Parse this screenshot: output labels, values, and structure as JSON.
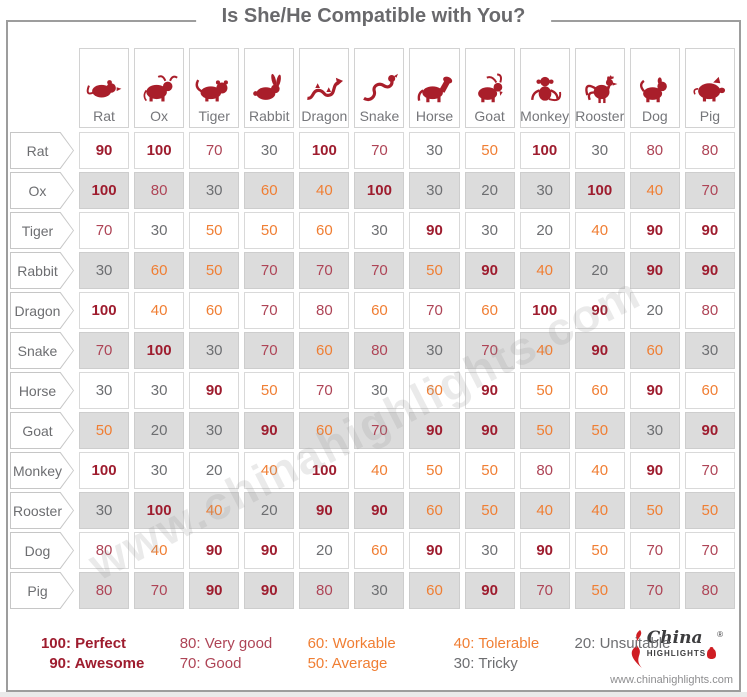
{
  "title": "Is She/He Compatible with You?",
  "watermark": "www.chinahighlights.com",
  "animals": [
    {
      "label": "Rat",
      "icon": "rat-icon"
    },
    {
      "label": "Ox",
      "icon": "ox-icon"
    },
    {
      "label": "Tiger",
      "icon": "tiger-icon"
    },
    {
      "label": "Rabbit",
      "icon": "rabbit-icon"
    },
    {
      "label": "Dragon",
      "icon": "dragon-icon"
    },
    {
      "label": "Snake",
      "icon": "snake-icon"
    },
    {
      "label": "Horse",
      "icon": "horse-icon"
    },
    {
      "label": "Goat",
      "icon": "goat-icon"
    },
    {
      "label": "Monkey",
      "icon": "monkey-icon"
    },
    {
      "label": "Rooster",
      "icon": "rooster-icon"
    },
    {
      "label": "Dog",
      "icon": "dog-icon"
    },
    {
      "label": "Pig",
      "icon": "pig-icon"
    }
  ],
  "chart_data": {
    "type": "heatmap",
    "title": "Is She/He Compatible with You?",
    "categories": [
      "Rat",
      "Ox",
      "Tiger",
      "Rabbit",
      "Dragon",
      "Snake",
      "Horse",
      "Goat",
      "Monkey",
      "Rooster",
      "Dog",
      "Pig"
    ],
    "rows": [
      {
        "label": "Rat",
        "values": [
          90,
          100,
          70,
          30,
          100,
          70,
          30,
          50,
          100,
          30,
          80,
          80
        ]
      },
      {
        "label": "Ox",
        "values": [
          100,
          80,
          30,
          60,
          40,
          100,
          30,
          20,
          30,
          100,
          40,
          70
        ]
      },
      {
        "label": "Tiger",
        "values": [
          70,
          30,
          50,
          50,
          60,
          30,
          90,
          30,
          20,
          40,
          90,
          90
        ]
      },
      {
        "label": "Rabbit",
        "values": [
          30,
          60,
          50,
          70,
          70,
          70,
          50,
          90,
          40,
          20,
          90,
          90
        ]
      },
      {
        "label": "Dragon",
        "values": [
          100,
          40,
          60,
          70,
          80,
          60,
          70,
          60,
          100,
          90,
          20,
          80
        ]
      },
      {
        "label": "Snake",
        "values": [
          70,
          100,
          30,
          70,
          60,
          80,
          30,
          70,
          40,
          90,
          60,
          30
        ]
      },
      {
        "label": "Horse",
        "values": [
          30,
          30,
          90,
          50,
          70,
          30,
          60,
          90,
          50,
          60,
          90,
          60
        ]
      },
      {
        "label": "Goat",
        "values": [
          50,
          20,
          30,
          90,
          60,
          70,
          90,
          90,
          50,
          50,
          30,
          90
        ]
      },
      {
        "label": "Monkey",
        "values": [
          100,
          30,
          20,
          40,
          100,
          40,
          50,
          50,
          80,
          40,
          90,
          70
        ]
      },
      {
        "label": "Rooster",
        "values": [
          30,
          100,
          40,
          20,
          90,
          90,
          60,
          50,
          40,
          40,
          50,
          50
        ]
      },
      {
        "label": "Dog",
        "values": [
          80,
          40,
          90,
          90,
          20,
          60,
          90,
          30,
          90,
          50,
          70,
          70
        ]
      },
      {
        "label": "Pig",
        "values": [
          80,
          70,
          90,
          90,
          80,
          30,
          60,
          90,
          70,
          50,
          70,
          80
        ]
      }
    ],
    "value_range": [
      20,
      100
    ]
  },
  "legend": {
    "items": [
      {
        "score": "100",
        "label": "Perfect",
        "tone": "perfect"
      },
      {
        "score": "90",
        "label": "Awesome",
        "tone": "perfect"
      },
      {
        "score": "80",
        "label": "Very good",
        "tone": "good"
      },
      {
        "score": "70",
        "label": "Good",
        "tone": "good"
      },
      {
        "score": "60",
        "label": "Workable",
        "tone": "mid"
      },
      {
        "score": "50",
        "label": "Average",
        "tone": "mid"
      },
      {
        "score": "40",
        "label": "Tolerable",
        "tone": "mid"
      },
      {
        "score": "30",
        "label": "Tricky",
        "tone": "low"
      },
      {
        "score": "20",
        "label": "Unsuitable",
        "tone": "low"
      }
    ]
  },
  "logo": {
    "name": "China",
    "sub": "HIGHLIGHTS",
    "reg": "®",
    "url": "www.chinahighlights.com"
  },
  "colors": {
    "perfect": "#9e1c2e",
    "good": "#ae4456",
    "mid": "#f07e33",
    "low": "#6d6e71",
    "icon": "#a91e2a"
  }
}
